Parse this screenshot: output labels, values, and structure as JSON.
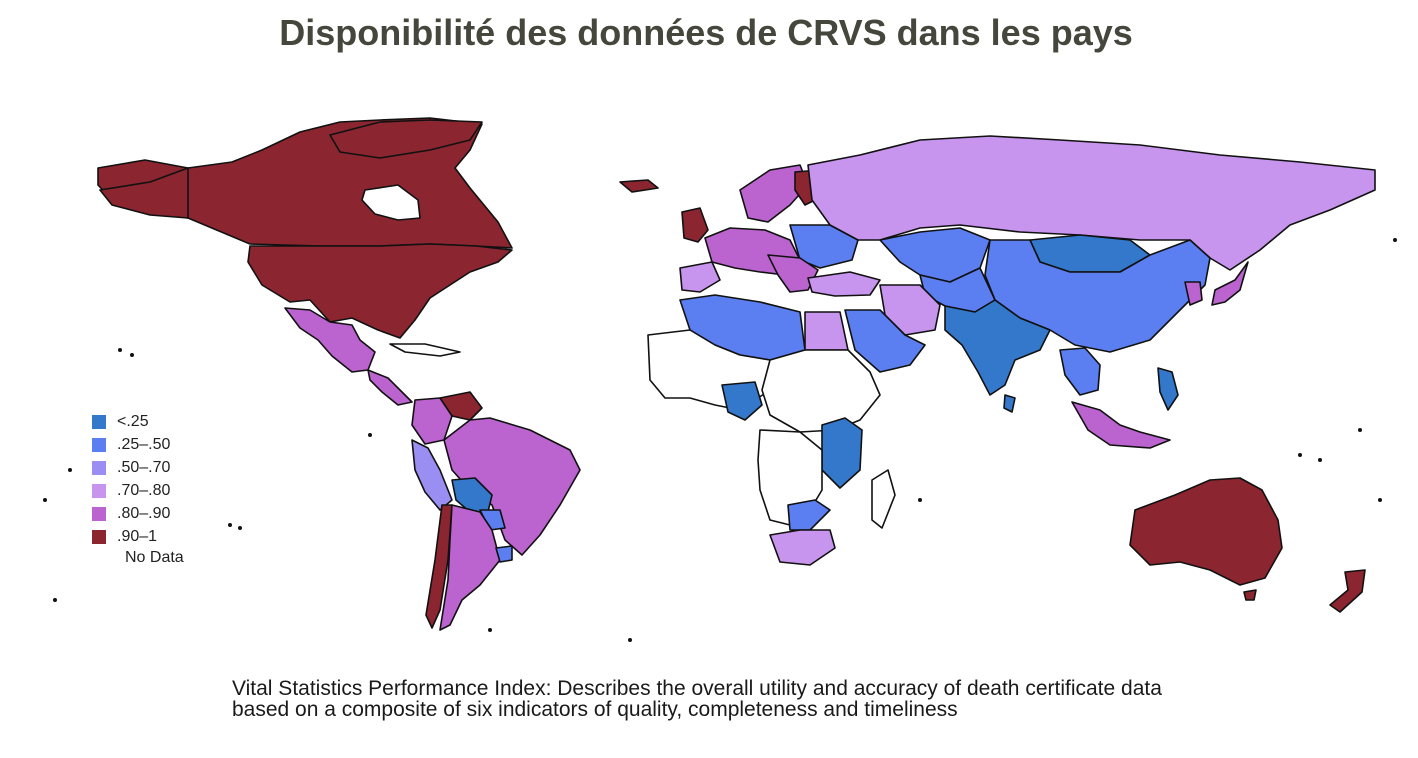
{
  "title": "Disponibilité des données de CRVS dans les pays",
  "legend": {
    "items": [
      {
        "label": "<.25",
        "color": "#3478cc"
      },
      {
        "label": ".25–.50",
        "color": "#5b7ff0"
      },
      {
        "label": ".50–.70",
        "color": "#9b8ef2"
      },
      {
        "label": ".70–.80",
        "color": "#c795ee"
      },
      {
        "label": ".80–.90",
        "color": "#bb63cf"
      },
      {
        "label": ".90–1",
        "color": "#8b2530"
      }
    ],
    "no_data_label": "No Data",
    "no_data_color": "#ffffff"
  },
  "caption": {
    "line1": "Vital Statistics Performance Index: Describes the overall utility and accuracy of death certificate data",
    "line2": "based on a composite of six indicators of quality, completeness and timeliness"
  }
}
